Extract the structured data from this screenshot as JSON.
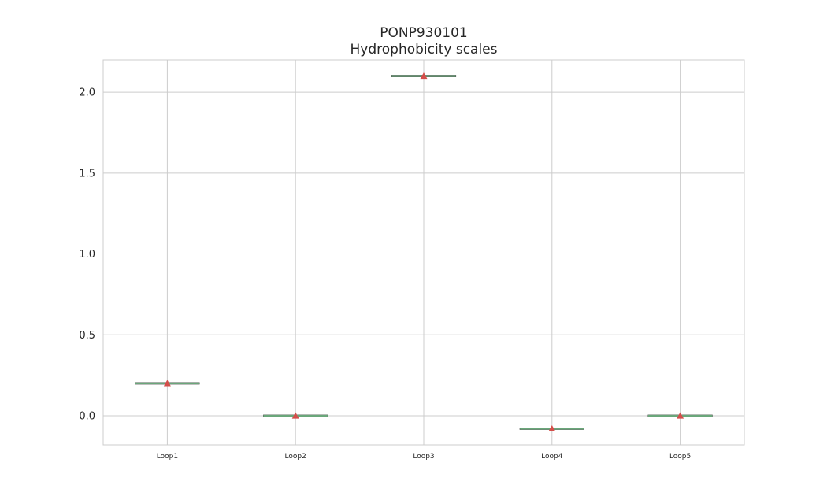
{
  "chart_data": {
    "type": "box",
    "title": "PONP930101",
    "subtitle": "Hydrophobicity scales",
    "xlabel": "",
    "ylabel": "",
    "categories": [
      "Loop1",
      "Loop2",
      "Loop3",
      "Loop4",
      "Loop5"
    ],
    "values": [
      0.2,
      0.0,
      2.1,
      -0.08,
      0.0
    ],
    "means": [
      0.2,
      0.0,
      2.1,
      -0.08,
      0.0
    ],
    "ylim": [
      -0.18,
      2.2
    ],
    "yticks": [
      0.0,
      0.5,
      1.0,
      1.5,
      2.0
    ],
    "ytick_labels": [
      "0.0",
      "0.5",
      "1.0",
      "1.5",
      "2.0"
    ],
    "grid": true,
    "colors": {
      "median": "#6aa77a",
      "mean_marker": "#d44e4a",
      "grid": "#cccccc",
      "frame": "#cccccc",
      "text": "#262626"
    }
  }
}
